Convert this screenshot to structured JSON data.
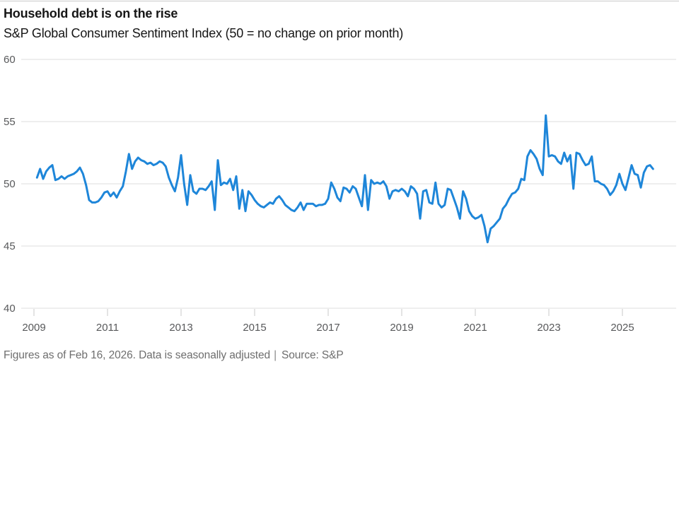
{
  "chart_data": {
    "type": "line",
    "title": "Household debt is on the rise",
    "subtitle": "S&P Global Consumer Sentiment Index (50 = no change on prior month)",
    "xlabel": "",
    "ylabel": "",
    "ylim": [
      40,
      60
    ],
    "y_ticks": [
      40,
      45,
      50,
      55,
      60
    ],
    "x_ticks": [
      2009,
      2011,
      2013,
      2015,
      2017,
      2019,
      2021,
      2023,
      2025
    ],
    "grid": true,
    "legend_position": "none",
    "line_color": "#1e86d9",
    "grid_color": "#dcdcdc",
    "tick_color": "#c8c8c8",
    "axis_label_color": "#58595b",
    "series": [
      {
        "name": "S&P Global Consumer Sentiment Index",
        "frequency": "monthly",
        "start_year": 2009,
        "start_month": 2,
        "values": [
          50.5,
          51.2,
          50.4,
          51.0,
          51.3,
          51.5,
          50.3,
          50.4,
          50.6,
          50.4,
          50.6,
          50.7,
          50.8,
          51.0,
          51.3,
          50.8,
          49.9,
          48.7,
          48.5,
          48.5,
          48.6,
          48.9,
          49.3,
          49.4,
          49.0,
          49.3,
          48.9,
          49.4,
          49.8,
          51.0,
          52.4,
          51.2,
          51.8,
          52.1,
          51.9,
          51.8,
          51.6,
          51.7,
          51.5,
          51.6,
          51.8,
          51.7,
          51.4,
          50.5,
          49.9,
          49.4,
          50.5,
          52.3,
          50.0,
          48.3,
          50.7,
          49.4,
          49.2,
          49.6,
          49.6,
          49.5,
          49.8,
          50.2,
          47.9,
          51.9,
          49.9,
          50.1,
          50.0,
          50.4,
          49.5,
          50.6,
          48.0,
          49.5,
          47.8,
          49.4,
          49.1,
          48.7,
          48.4,
          48.2,
          48.1,
          48.3,
          48.5,
          48.4,
          48.8,
          49.0,
          48.7,
          48.3,
          48.1,
          47.9,
          47.8,
          48.1,
          48.5,
          47.9,
          48.4,
          48.4,
          48.4,
          48.2,
          48.3,
          48.3,
          48.4,
          48.8,
          50.1,
          49.6,
          48.9,
          48.6,
          49.7,
          49.6,
          49.3,
          49.8,
          49.6,
          48.9,
          48.2,
          50.7,
          47.9,
          50.3,
          50.0,
          50.1,
          50.0,
          50.2,
          49.8,
          48.8,
          49.4,
          49.5,
          49.4,
          49.6,
          49.4,
          49.0,
          49.8,
          49.6,
          49.2,
          47.2,
          49.4,
          49.5,
          48.5,
          48.4,
          50.1,
          48.4,
          48.1,
          48.3,
          49.6,
          49.5,
          48.8,
          48.1,
          47.2,
          49.4,
          48.8,
          47.8,
          47.4,
          47.2,
          47.3,
          47.5,
          46.6,
          45.3,
          46.4,
          46.6,
          46.9,
          47.2,
          48.0,
          48.3,
          48.8,
          49.2,
          49.3,
          49.6,
          50.4,
          50.3,
          52.2,
          52.7,
          52.4,
          52.0,
          51.2,
          50.7,
          55.5,
          52.2,
          52.3,
          52.2,
          51.8,
          51.6,
          52.5,
          51.8,
          52.3,
          49.6,
          52.5,
          52.4,
          51.9,
          51.5,
          51.6,
          52.2,
          50.2,
          50.2,
          50.0,
          49.9,
          49.6,
          49.1,
          49.4,
          49.9,
          50.8,
          50.0,
          49.5,
          50.5,
          51.5,
          50.8,
          50.7,
          49.7,
          50.9,
          51.4,
          51.5,
          51.2
        ]
      }
    ]
  },
  "footer": {
    "note": "Figures as of Feb 16, 2026. Data is seasonally adjusted",
    "separator": "|",
    "source": "Source: S&P"
  }
}
